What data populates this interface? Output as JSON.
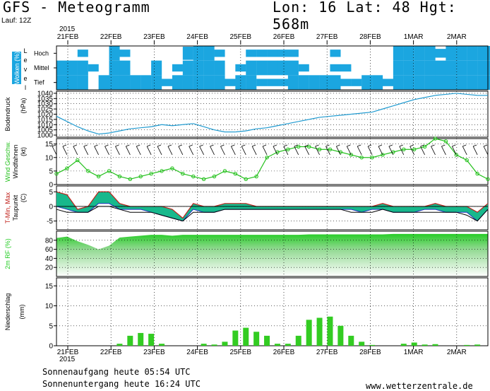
{
  "header": {
    "title": "GFS - Meteogramm",
    "coords": "Lon: 16 Lat: 48 Hgt: 568m",
    "run": "Lauf: 12Z",
    "year_top": "2015"
  },
  "dates": [
    "21FEB",
    "22FEB",
    "23FEB",
    "24FEB",
    "25FEB",
    "26FEB",
    "27FEB",
    "28FEB",
    "1MAR",
    "2MAR"
  ],
  "year_bottom": "2015",
  "footer": {
    "sunrise": "Sonnenaufgang heute 05:54 UTC",
    "sunset": "Sonnenuntergang heute 16:24 UTC",
    "source": "www.wetterzentrale.de"
  },
  "colors": {
    "cloud": "#1ba6e0",
    "pressure": "#1f9ad0",
    "wind": "#22c01a",
    "temp_fill": "#18b88c",
    "rh": "#22cc22",
    "precip": "#33cc22"
  },
  "chart_data": [
    {
      "type": "heatmap",
      "panel": "clouds",
      "ylabel": "Wolken (%)",
      "levels": [
        "Hoch",
        "Mittel",
        "Tief"
      ],
      "level_axis_letters": "Level",
      "x_hours": [
        0,
        6,
        12,
        18,
        24,
        30,
        36,
        42,
        48,
        54,
        60,
        66,
        72,
        78,
        84,
        90,
        96,
        102,
        108,
        114,
        120,
        126,
        132,
        138,
        144,
        150,
        156,
        162,
        168,
        174,
        180,
        186,
        192,
        198,
        204,
        210,
        216,
        222,
        228,
        234,
        240,
        246
      ],
      "coverage": {
        "Hoch": [
          0,
          0,
          50,
          0,
          0,
          100,
          50,
          0,
          0,
          0,
          0,
          0,
          90,
          100,
          100,
          50,
          0,
          0,
          50,
          50,
          50,
          50,
          50,
          0,
          0,
          0,
          50,
          0,
          0,
          0,
          0,
          0,
          100,
          100,
          100,
          100,
          60,
          100,
          100,
          100,
          100,
          100
        ],
        "Mittel": [
          100,
          100,
          100,
          50,
          0,
          100,
          100,
          0,
          0,
          100,
          0,
          50,
          100,
          100,
          100,
          100,
          0,
          50,
          100,
          100,
          100,
          100,
          100,
          50,
          0,
          0,
          50,
          50,
          0,
          0,
          0,
          0,
          100,
          100,
          100,
          100,
          100,
          100,
          100,
          100,
          100,
          100
        ],
        "Tief": [
          100,
          100,
          100,
          0,
          100,
          100,
          100,
          100,
          100,
          100,
          50,
          100,
          100,
          100,
          100,
          100,
          50,
          100,
          100,
          50,
          50,
          50,
          100,
          100,
          100,
          100,
          100,
          50,
          50,
          100,
          100,
          50,
          100,
          100,
          100,
          100,
          100,
          100,
          100,
          100,
          100,
          100
        ]
      }
    },
    {
      "type": "line",
      "panel": "pressure",
      "ylabel": "Bodendruck",
      "unit": "(hPa)",
      "yticks": [
        1000,
        1005,
        1010,
        1015,
        1020,
        1025,
        1030,
        1035,
        1040
      ],
      "ylim": [
        998,
        1042
      ],
      "x_hours": [
        0,
        6,
        12,
        18,
        24,
        30,
        36,
        42,
        48,
        54,
        60,
        66,
        72,
        78,
        84,
        90,
        96,
        102,
        108,
        114,
        120,
        126,
        132,
        138,
        144,
        150,
        156,
        162,
        168,
        174,
        180,
        186,
        192,
        198,
        204,
        210,
        216,
        222,
        228,
        234,
        240,
        246
      ],
      "values": [
        1018,
        1013,
        1008,
        1004,
        1001,
        1002,
        1004,
        1006,
        1007,
        1008,
        1010,
        1009,
        1010,
        1011,
        1008,
        1005,
        1003,
        1003,
        1004,
        1006,
        1007,
        1009,
        1011,
        1013,
        1015,
        1017,
        1018,
        1019,
        1020,
        1021,
        1022,
        1025,
        1028,
        1031,
        1034,
        1036,
        1038,
        1039,
        1040,
        1039,
        1038,
        1038
      ]
    },
    {
      "type": "line",
      "panel": "wind",
      "ylabel": "Wind Geschw.",
      "ylabel2": "Windfahnen",
      "unit": "(kt)",
      "yticks": [
        0,
        5,
        10,
        15
      ],
      "ylim": [
        0,
        17
      ],
      "x_hours": [
        0,
        6,
        12,
        18,
        24,
        30,
        36,
        42,
        48,
        54,
        60,
        66,
        72,
        78,
        84,
        90,
        96,
        102,
        108,
        114,
        120,
        126,
        132,
        138,
        144,
        150,
        156,
        162,
        168,
        174,
        180,
        186,
        192,
        198,
        204,
        210,
        216,
        222,
        228,
        234,
        240,
        246
      ],
      "values": [
        4,
        6,
        9,
        5,
        3,
        5,
        3,
        2,
        3,
        4,
        5,
        6,
        4,
        3,
        2,
        3,
        5,
        4,
        2,
        3,
        10,
        12,
        13,
        14,
        14,
        13,
        13,
        12,
        11,
        10,
        10,
        11,
        12,
        13,
        13,
        14,
        17,
        16,
        11,
        9,
        4,
        2
      ]
    },
    {
      "type": "area",
      "panel": "temperature",
      "ylabel": "T-Min, Max",
      "ylabel2": "Taupunkt",
      "unit": "(C)",
      "yticks": [
        5,
        0,
        -5
      ],
      "ylim": [
        -8,
        7
      ],
      "x_hours": [
        0,
        6,
        12,
        18,
        24,
        30,
        36,
        42,
        48,
        54,
        60,
        66,
        72,
        78,
        84,
        90,
        96,
        102,
        108,
        114,
        120,
        126,
        132,
        138,
        144,
        150,
        156,
        162,
        168,
        174,
        180,
        186,
        192,
        198,
        204,
        210,
        216,
        222,
        228,
        234,
        240,
        246
      ],
      "series": [
        {
          "name": "Max",
          "values": [
            5,
            4,
            -1,
            0,
            5,
            5,
            1,
            0,
            0,
            0,
            0,
            -1,
            -4,
            1,
            0,
            0,
            1,
            1,
            1,
            0,
            0,
            0,
            0,
            0,
            0,
            0,
            0,
            0,
            0,
            0,
            0,
            1,
            0,
            0,
            0,
            0,
            1,
            0,
            0,
            0,
            -2,
            1
          ]
        },
        {
          "name": "Min",
          "values": [
            0,
            -1,
            -2,
            -2,
            1,
            1,
            -1,
            -1,
            -1,
            -2,
            -3,
            -4,
            -5,
            -1,
            -2,
            -2,
            -1,
            -1,
            -1,
            -1,
            -1,
            -1,
            -1,
            -1,
            -1,
            -1,
            -1,
            -1,
            -1,
            -2,
            -1,
            -1,
            -2,
            -2,
            -2,
            -1,
            -1,
            -2,
            -2,
            -2,
            -5,
            -1
          ]
        },
        {
          "name": "Taupunkt",
          "values": [
            -1,
            -2,
            -2,
            -2,
            0,
            0,
            -1,
            -2,
            -2,
            -2,
            -3,
            -4,
            -5,
            -2,
            -2,
            -2,
            -1,
            -1,
            -1,
            -1,
            -1,
            -1,
            -1,
            -1,
            -1,
            -1,
            -1,
            -1,
            -2,
            -2,
            -2,
            -1,
            -2,
            -2,
            -2,
            -2,
            -2,
            -2,
            -2,
            -3,
            -5,
            -1
          ]
        }
      ]
    },
    {
      "type": "area",
      "panel": "humidity",
      "ylabel": "2m RF (%)",
      "yticks": [
        20,
        40,
        60,
        80
      ],
      "ylim": [
        0,
        100
      ],
      "x_hours": [
        0,
        6,
        12,
        18,
        24,
        30,
        36,
        42,
        48,
        54,
        60,
        66,
        72,
        78,
        84,
        90,
        96,
        102,
        108,
        114,
        120,
        126,
        132,
        138,
        144,
        150,
        156,
        162,
        168,
        174,
        180,
        186,
        192,
        198,
        204,
        210,
        216,
        222,
        228,
        234,
        240,
        246
      ],
      "values": [
        85,
        88,
        78,
        70,
        60,
        68,
        86,
        88,
        90,
        92,
        92,
        90,
        92,
        92,
        92,
        92,
        92,
        92,
        92,
        92,
        92,
        92,
        92,
        92,
        93,
        93,
        93,
        93,
        93,
        93,
        93,
        93,
        94,
        94,
        94,
        94,
        94,
        94,
        94,
        94,
        94,
        94
      ]
    },
    {
      "type": "bar",
      "panel": "precipitation",
      "ylabel": "Niederschlag",
      "unit": "(mm)",
      "yticks": [
        0,
        5,
        10,
        15
      ],
      "ylim": [
        0,
        17
      ],
      "x_hours": [
        0,
        6,
        12,
        18,
        24,
        30,
        36,
        42,
        48,
        54,
        60,
        66,
        72,
        78,
        84,
        90,
        96,
        102,
        108,
        114,
        120,
        126,
        132,
        138,
        144,
        150,
        156,
        162,
        168,
        174,
        180,
        186,
        192,
        198,
        204,
        210,
        216,
        222,
        228,
        234,
        240,
        246
      ],
      "values": [
        0,
        0,
        0,
        0,
        0,
        0,
        0.5,
        2.5,
        3.2,
        3,
        0.5,
        0,
        0,
        0,
        0.5,
        0.3,
        1,
        3.8,
        4.5,
        3.5,
        2.5,
        0.5,
        0.5,
        2.5,
        6.5,
        7,
        7.3,
        5,
        2.5,
        1,
        0.2,
        0,
        0,
        0.5,
        0.8,
        0.3,
        0.4,
        0,
        0,
        0.2,
        0.3,
        0
      ]
    }
  ]
}
